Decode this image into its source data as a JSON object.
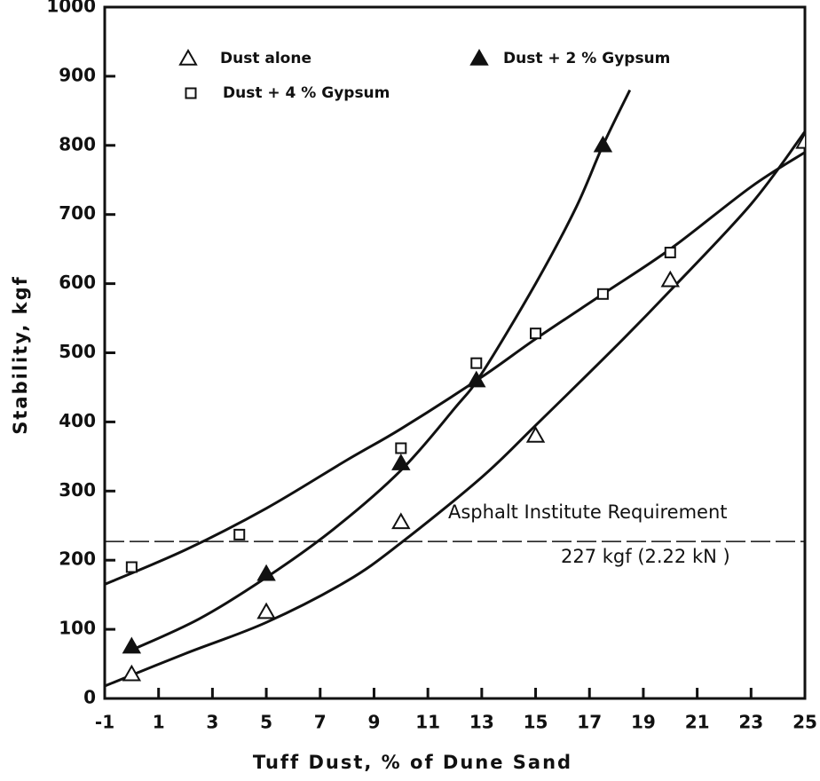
{
  "chart_data": {
    "type": "scatter",
    "x_label": "Tuff Dust,  % of Dune Sand",
    "y_label": "Stability,  kgf",
    "xlim": [
      -1,
      25
    ],
    "ylim": [
      0,
      1000
    ],
    "xticks": [
      -1,
      1,
      3,
      5,
      7,
      9,
      11,
      13,
      15,
      17,
      19,
      21,
      23,
      25
    ],
    "yticks": [
      0,
      100,
      200,
      300,
      400,
      500,
      600,
      700,
      800,
      900,
      1000
    ],
    "reference_line": {
      "value": 227,
      "label": "Asphalt Institute Requirement",
      "sublabel": "227 kgf (2.22 kN )"
    },
    "series": [
      {
        "name": "Dust alone",
        "marker": "triangle-open",
        "color": "#111111",
        "x": [
          0,
          5,
          10,
          15,
          20,
          25
        ],
        "y": [
          35,
          125,
          255,
          380,
          605,
          805
        ],
        "fit": {
          "x": [
            -1,
            2,
            5,
            8,
            10,
            13,
            15,
            18,
            20,
            23,
            25
          ],
          "y": [
            18,
            65,
            110,
            170,
            225,
            320,
            395,
            510,
            590,
            715,
            820
          ]
        }
      },
      {
        "name": "Dust + 2 % Gypsum",
        "marker": "triangle-filled",
        "color": "#111111",
        "x": [
          0,
          5,
          10,
          12.8,
          17.5
        ],
        "y": [
          75,
          180,
          340,
          460,
          800
        ],
        "fit": {
          "x": [
            0,
            2.5,
            5,
            7.5,
            10,
            12,
            13,
            15,
            16.5,
            17.5,
            18.5
          ],
          "y": [
            70,
            115,
            175,
            245,
            330,
            420,
            470,
            600,
            710,
            800,
            880
          ]
        }
      },
      {
        "name": "Dust + 4 % Gypsum",
        "marker": "square-open",
        "color": "#111111",
        "x": [
          0,
          4,
          10,
          12.8,
          15,
          17.5,
          20
        ],
        "y": [
          190,
          237,
          362,
          485,
          528,
          585,
          645
        ],
        "fit": {
          "x": [
            -1,
            2,
            5,
            8,
            10,
            13,
            15,
            17.5,
            20,
            23,
            25
          ],
          "y": [
            165,
            215,
            275,
            345,
            390,
            465,
            520,
            585,
            650,
            740,
            790
          ]
        }
      }
    ],
    "legend": "top-left"
  }
}
